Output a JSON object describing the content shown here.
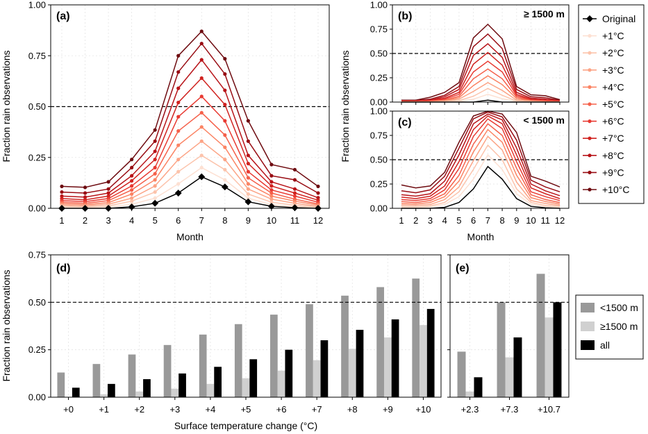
{
  "chart_data": [
    {
      "id": "a",
      "type": "line",
      "panel_label": "(a)",
      "xlabel": "Month",
      "ylabel": "Fraction rain observations",
      "x": [
        1,
        2,
        3,
        4,
        5,
        6,
        7,
        8,
        9,
        10,
        11,
        12
      ],
      "ylim": [
        0,
        1.0
      ],
      "yticks": [
        "0.00",
        "0.25",
        "0.50",
        "0.75",
        "1.00"
      ],
      "xticks": [
        "1",
        "2",
        "3",
        "4",
        "5",
        "6",
        "7",
        "8",
        "9",
        "10",
        "11",
        "12"
      ],
      "hline": 0.5,
      "markers": true,
      "series": [
        {
          "name": "Original",
          "color": "#000000",
          "values": [
            0.0,
            0.0,
            0.0,
            0.007,
            0.025,
            0.075,
            0.155,
            0.105,
            0.032,
            0.01,
            0.003,
            0.0
          ]
        },
        {
          "name": "+1°C",
          "color": "#fde0d2",
          "values": [
            0.005,
            0.003,
            0.006,
            0.02,
            0.05,
            0.12,
            0.2,
            0.14,
            0.05,
            0.018,
            0.008,
            0.003
          ]
        },
        {
          "name": "+2°C",
          "color": "#fcc3ab",
          "values": [
            0.01,
            0.007,
            0.012,
            0.035,
            0.08,
            0.18,
            0.26,
            0.19,
            0.07,
            0.03,
            0.015,
            0.006
          ]
        },
        {
          "name": "+3°C",
          "color": "#fca486",
          "values": [
            0.016,
            0.012,
            0.02,
            0.05,
            0.11,
            0.24,
            0.33,
            0.24,
            0.095,
            0.045,
            0.025,
            0.01
          ]
        },
        {
          "name": "+4°C",
          "color": "#fb8464",
          "values": [
            0.023,
            0.018,
            0.028,
            0.07,
            0.14,
            0.31,
            0.4,
            0.3,
            0.12,
            0.06,
            0.035,
            0.016
          ]
        },
        {
          "name": "+5°C",
          "color": "#f5604a",
          "values": [
            0.03,
            0.025,
            0.038,
            0.09,
            0.17,
            0.38,
            0.47,
            0.36,
            0.15,
            0.075,
            0.045,
            0.022
          ]
        },
        {
          "name": "+6°C",
          "color": "#e83a32",
          "values": [
            0.038,
            0.033,
            0.048,
            0.11,
            0.2,
            0.45,
            0.55,
            0.43,
            0.18,
            0.09,
            0.06,
            0.03
          ]
        },
        {
          "name": "+7°C",
          "color": "#d0221f",
          "values": [
            0.048,
            0.042,
            0.06,
            0.135,
            0.24,
            0.52,
            0.64,
            0.51,
            0.22,
            0.11,
            0.075,
            0.04
          ]
        },
        {
          "name": "+8°C",
          "color": "#b81419",
          "values": [
            0.06,
            0.055,
            0.075,
            0.16,
            0.28,
            0.59,
            0.73,
            0.58,
            0.26,
            0.13,
            0.095,
            0.052
          ]
        },
        {
          "name": "+9°C",
          "color": "#980c13",
          "values": [
            0.08,
            0.075,
            0.095,
            0.2,
            0.33,
            0.67,
            0.81,
            0.66,
            0.33,
            0.16,
            0.14,
            0.075
          ]
        },
        {
          "name": "+10°C",
          "color": "#6e0b10",
          "values": [
            0.108,
            0.103,
            0.13,
            0.24,
            0.385,
            0.75,
            0.87,
            0.735,
            0.43,
            0.215,
            0.19,
            0.108
          ]
        }
      ]
    },
    {
      "id": "b",
      "type": "line",
      "panel_label": "(b)",
      "note": "≥ 1500 m",
      "ylabel": "Fraction rain observations",
      "x": [
        1,
        2,
        3,
        4,
        5,
        6,
        7,
        8,
        9,
        10,
        11,
        12
      ],
      "ylim": [
        0,
        1.0
      ],
      "yticks": [
        "0.00",
        "0.25",
        "0.50",
        "0.75",
        "1.00"
      ],
      "hline": 0.5,
      "markers": false,
      "series": [
        {
          "name": "Original",
          "color": "#000000",
          "values": [
            0,
            0,
            0,
            0,
            0,
            0,
            0.02,
            0,
            0,
            0,
            0,
            0
          ]
        },
        {
          "name": "+1°C",
          "color": "#fde0d2",
          "values": [
            0,
            0,
            0,
            0,
            0.005,
            0.03,
            0.08,
            0.035,
            0.005,
            0,
            0,
            0
          ]
        },
        {
          "name": "+2°C",
          "color": "#fcc3ab",
          "values": [
            0,
            0,
            0,
            0.005,
            0.015,
            0.06,
            0.14,
            0.07,
            0.01,
            0.005,
            0,
            0
          ]
        },
        {
          "name": "+3°C",
          "color": "#fca486",
          "values": [
            0.002,
            0.002,
            0.003,
            0.01,
            0.03,
            0.11,
            0.2,
            0.12,
            0.02,
            0.008,
            0.003,
            0.002
          ]
        },
        {
          "name": "+4°C",
          "color": "#fb8464",
          "values": [
            0.004,
            0.004,
            0.006,
            0.015,
            0.045,
            0.17,
            0.27,
            0.18,
            0.035,
            0.012,
            0.006,
            0.004
          ]
        },
        {
          "name": "+5°C",
          "color": "#f5604a",
          "values": [
            0.006,
            0.006,
            0.009,
            0.02,
            0.06,
            0.24,
            0.34,
            0.24,
            0.05,
            0.016,
            0.01,
            0.006
          ]
        },
        {
          "name": "+6°C",
          "color": "#e83a32",
          "values": [
            0.008,
            0.008,
            0.012,
            0.03,
            0.08,
            0.31,
            0.42,
            0.31,
            0.065,
            0.022,
            0.015,
            0.008
          ]
        },
        {
          "name": "+7°C",
          "color": "#d0221f",
          "values": [
            0.01,
            0.01,
            0.015,
            0.04,
            0.1,
            0.39,
            0.51,
            0.38,
            0.08,
            0.03,
            0.02,
            0.01
          ]
        },
        {
          "name": "+8°C",
          "color": "#b81419",
          "values": [
            0.012,
            0.012,
            0.02,
            0.055,
            0.13,
            0.48,
            0.6,
            0.46,
            0.1,
            0.04,
            0.03,
            0.013
          ]
        },
        {
          "name": "+9°C",
          "color": "#980c13",
          "values": [
            0.015,
            0.015,
            0.03,
            0.07,
            0.16,
            0.57,
            0.7,
            0.55,
            0.13,
            0.055,
            0.045,
            0.017
          ]
        },
        {
          "name": "+10°C",
          "color": "#6e0b10",
          "values": [
            0.02,
            0.02,
            0.05,
            0.1,
            0.2,
            0.66,
            0.8,
            0.65,
            0.16,
            0.075,
            0.065,
            0.025
          ]
        }
      ]
    },
    {
      "id": "c",
      "type": "line",
      "panel_label": "(c)",
      "note": "< 1500 m",
      "xlabel": "Month",
      "ylabel": "Fraction rain observations",
      "x": [
        1,
        2,
        3,
        4,
        5,
        6,
        7,
        8,
        9,
        10,
        11,
        12
      ],
      "ylim": [
        0,
        1.0
      ],
      "yticks": [
        "0.00",
        "0.25",
        "0.50",
        "0.75",
        "1.00"
      ],
      "xticks": [
        "1",
        "2",
        "3",
        "4",
        "5",
        "6",
        "7",
        "8",
        "9",
        "10",
        "11",
        "12"
      ],
      "hline": 0.5,
      "markers": false,
      "series": [
        {
          "name": "Original",
          "color": "#000000",
          "values": [
            0,
            0,
            0,
            0.01,
            0.06,
            0.2,
            0.43,
            0.3,
            0.1,
            0.02,
            0.005,
            0
          ]
        },
        {
          "name": "+1°C",
          "color": "#fde0d2",
          "values": [
            0.01,
            0.008,
            0.015,
            0.04,
            0.12,
            0.3,
            0.55,
            0.4,
            0.15,
            0.04,
            0.02,
            0.01
          ]
        },
        {
          "name": "+2°C",
          "color": "#fcc3ab",
          "values": [
            0.02,
            0.015,
            0.025,
            0.06,
            0.17,
            0.4,
            0.65,
            0.5,
            0.2,
            0.06,
            0.03,
            0.02
          ]
        },
        {
          "name": "+3°C",
          "color": "#fca486",
          "values": [
            0.035,
            0.03,
            0.04,
            0.09,
            0.22,
            0.49,
            0.74,
            0.6,
            0.27,
            0.08,
            0.05,
            0.03
          ]
        },
        {
          "name": "+4°C",
          "color": "#fb8464",
          "values": [
            0.05,
            0.045,
            0.06,
            0.12,
            0.28,
            0.58,
            0.81,
            0.68,
            0.34,
            0.11,
            0.07,
            0.045
          ]
        },
        {
          "name": "+5°C",
          "color": "#f5604a",
          "values": [
            0.07,
            0.06,
            0.08,
            0.15,
            0.34,
            0.66,
            0.87,
            0.75,
            0.41,
            0.14,
            0.09,
            0.06
          ]
        },
        {
          "name": "+6°C",
          "color": "#e83a32",
          "values": [
            0.09,
            0.08,
            0.1,
            0.19,
            0.41,
            0.74,
            0.92,
            0.82,
            0.48,
            0.17,
            0.12,
            0.08
          ]
        },
        {
          "name": "+7°C",
          "color": "#d0221f",
          "values": [
            0.115,
            0.1,
            0.125,
            0.23,
            0.48,
            0.81,
            0.95,
            0.87,
            0.55,
            0.21,
            0.15,
            0.1
          ]
        },
        {
          "name": "+8°C",
          "color": "#b81419",
          "values": [
            0.14,
            0.125,
            0.15,
            0.28,
            0.55,
            0.87,
            0.97,
            0.91,
            0.62,
            0.25,
            0.18,
            0.13
          ]
        },
        {
          "name": "+9°C",
          "color": "#980c13",
          "values": [
            0.18,
            0.16,
            0.19,
            0.33,
            0.62,
            0.92,
            0.99,
            0.94,
            0.7,
            0.29,
            0.22,
            0.17
          ]
        },
        {
          "name": "+10°C",
          "color": "#6e0b10",
          "values": [
            0.24,
            0.21,
            0.23,
            0.37,
            0.68,
            0.95,
            1.0,
            0.97,
            0.78,
            0.33,
            0.28,
            0.22
          ]
        }
      ]
    },
    {
      "id": "d",
      "type": "bar",
      "panel_label": "(d)",
      "xlabel": "Surface temperature change (°C)",
      "ylabel": "Fraction rain observations",
      "categories": [
        "+0",
        "+1",
        "+2",
        "+3",
        "+4",
        "+5",
        "+6",
        "+7",
        "+8",
        "+9",
        "+10"
      ],
      "ylim": [
        0,
        0.75
      ],
      "yticks": [
        "0.00",
        "0.25",
        "0.50",
        "0.75"
      ],
      "hline": 0.5,
      "series": [
        {
          "name": "<1500 m",
          "color": "#999999",
          "values": [
            0.13,
            0.175,
            0.225,
            0.275,
            0.33,
            0.385,
            0.435,
            0.49,
            0.535,
            0.58,
            0.625
          ]
        },
        {
          "name": "≥1500 m",
          "color": "#d0d0d0",
          "values": [
            0.0,
            0.015,
            0.03,
            0.045,
            0.07,
            0.1,
            0.14,
            0.195,
            0.255,
            0.315,
            0.38
          ]
        },
        {
          "name": "all",
          "color": "#000000",
          "values": [
            0.05,
            0.07,
            0.095,
            0.125,
            0.16,
            0.2,
            0.25,
            0.3,
            0.355,
            0.41,
            0.465
          ]
        }
      ]
    },
    {
      "id": "e",
      "type": "bar",
      "panel_label": "(e)",
      "categories": [
        "+2.3",
        "+7.3",
        "+10.7"
      ],
      "ylim": [
        0,
        0.75
      ],
      "hline": 0.5,
      "series": [
        {
          "name": "<1500 m",
          "color": "#999999",
          "values": [
            0.24,
            0.5,
            0.65
          ]
        },
        {
          "name": "≥1500 m",
          "color": "#d0d0d0",
          "values": [
            0.03,
            0.21,
            0.42
          ]
        },
        {
          "name": "all",
          "color": "#000000",
          "values": [
            0.105,
            0.315,
            0.5
          ]
        }
      ]
    }
  ],
  "legend_lines": {
    "entries": [
      "Original",
      "+1°C",
      "+2°C",
      "+3°C",
      "+4°C",
      "+5°C",
      "+6°C",
      "+7°C",
      "+8°C",
      "+9°C",
      "+10°C"
    ],
    "colors": [
      "#000000",
      "#fde0d2",
      "#fcc3ab",
      "#fca486",
      "#fb8464",
      "#f5604a",
      "#e83a32",
      "#d0221f",
      "#b81419",
      "#980c13",
      "#6e0b10"
    ]
  },
  "legend_bars": {
    "entries": [
      "<1500 m",
      "≥1500 m",
      "all"
    ],
    "colors": [
      "#999999",
      "#d0d0d0",
      "#000000"
    ]
  }
}
